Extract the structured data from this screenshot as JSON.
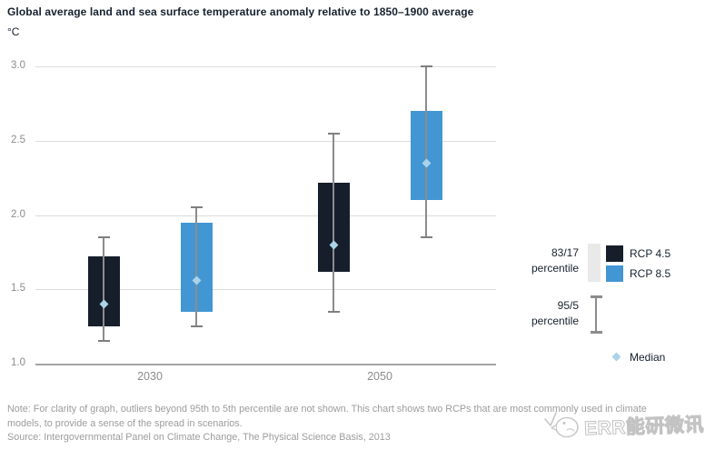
{
  "chart_data": {
    "type": "boxplot",
    "title": "Global average land and sea surface temperature anomaly relative to 1850–1900 average",
    "ylabel": "°C",
    "xlabel": "",
    "ylim": [
      1.0,
      3.0
    ],
    "yticks": [
      "1.0",
      "1.5",
      "2.0",
      "2.5",
      "3.0"
    ],
    "grid": true,
    "categories": [
      "2030",
      "2050"
    ],
    "series": [
      {
        "name": "RCP 4.5",
        "color": "#161e2b",
        "boxes": [
          {
            "category": "2030",
            "p5": 1.15,
            "p17": 1.25,
            "median": 1.4,
            "p83": 1.72,
            "p95": 1.85
          },
          {
            "category": "2050",
            "p5": 1.35,
            "p17": 1.62,
            "median": 1.8,
            "p83": 2.22,
            "p95": 2.55
          }
        ]
      },
      {
        "name": "RCP 8.5",
        "color": "#4296d3",
        "boxes": [
          {
            "category": "2030",
            "p5": 1.25,
            "p17": 1.35,
            "median": 1.56,
            "p83": 1.95,
            "p95": 2.05
          },
          {
            "category": "2050",
            "p5": 1.85,
            "p17": 2.1,
            "median": 2.35,
            "p83": 2.7,
            "p95": 3.0
          }
        ]
      }
    ],
    "colors": {
      "median_marker": "#abd3e8",
      "whisker": "#8c8c8c",
      "gridline": "#dcdcdc",
      "axis_line": "#a3a3a3",
      "legend_percentile_box": "#e9e9e9"
    },
    "legend": {
      "position": "right",
      "box_range": {
        "line1": "83/17",
        "line2": "percentile"
      },
      "whisker_range": {
        "line1": "95/5",
        "line2": "percentile"
      },
      "median_label": "Median"
    }
  },
  "footer": {
    "note": "Note: For clarity of graph, outliers beyond 95th to 5th percentile are not shown. This chart shows two RCPs that are most commonly used in climate models, to provide a sense of the spread in scenarios.",
    "source": "Source: Intergovernmental Panel on Climate Change, The Physical Science Basis, 2013",
    "watermark": "ERR能研微讯"
  }
}
